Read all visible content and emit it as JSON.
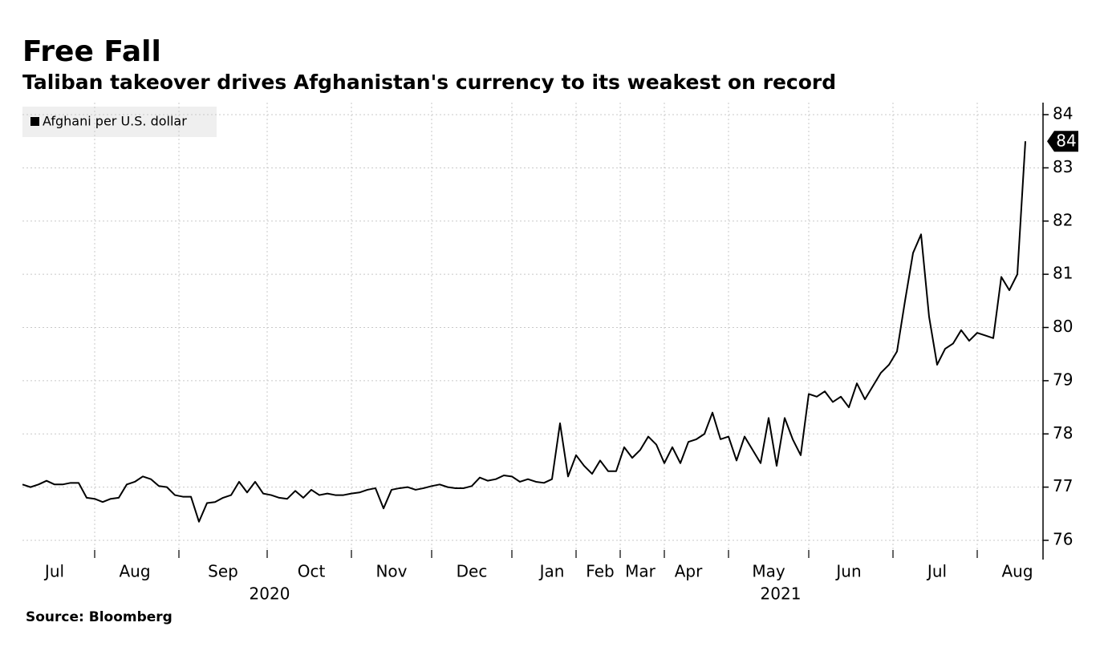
{
  "chart_data": {
    "type": "line",
    "title": "Free Fall",
    "subtitle": "Taliban takeover drives Afghanistan's currency to its weakest on record",
    "source": "Source: Bloomberg",
    "categories": [
      null,
      null,
      null,
      null,
      "Jul",
      null,
      null,
      null,
      null,
      null,
      null,
      null,
      null,
      null,
      "Aug",
      null,
      null,
      null,
      null,
      null,
      null,
      null,
      null,
      null,
      null,
      "Sep",
      null,
      null,
      null,
      null,
      null,
      null,
      null,
      null,
      null,
      null,
      "Oct",
      null,
      null,
      null,
      null,
      null,
      null,
      null,
      null,
      null,
      "Nov",
      null,
      null,
      null,
      null,
      null,
      null,
      null,
      null,
      null,
      "Dec",
      null,
      null,
      null,
      null,
      null,
      null,
      null,
      null,
      null,
      "Jan",
      null,
      null,
      null,
      null,
      null,
      "Feb",
      null,
      null,
      null,
      null,
      "Mar",
      null,
      null,
      null,
      null,
      null,
      "Apr",
      null,
      null,
      null,
      null,
      null,
      null,
      null,
      null,
      null,
      "May",
      null,
      null,
      null,
      null,
      null,
      null,
      null,
      null,
      null,
      "Jun",
      null,
      null,
      null,
      null,
      null,
      null,
      null,
      null,
      null,
      null,
      "Jul",
      null,
      null,
      null,
      null,
      null,
      null,
      null,
      null,
      null,
      "Aug",
      null
    ],
    "x_groups": [
      "2020",
      "2021"
    ],
    "series": [
      {
        "name": "Afghani per U.S. dollar",
        "color": "#000000",
        "values": [
          77.05,
          77.0,
          77.05,
          77.12,
          77.05,
          77.05,
          77.08,
          77.08,
          76.8,
          76.78,
          76.72,
          76.78,
          76.8,
          77.05,
          77.1,
          77.2,
          77.15,
          77.02,
          77.0,
          76.85,
          76.82,
          76.82,
          76.35,
          76.7,
          76.72,
          76.8,
          76.85,
          77.1,
          76.9,
          77.1,
          76.88,
          76.85,
          76.8,
          76.78,
          76.93,
          76.8,
          76.95,
          76.85,
          76.88,
          76.85,
          76.85,
          76.88,
          76.9,
          76.95,
          76.98,
          76.6,
          76.95,
          76.98,
          77.0,
          76.95,
          76.98,
          77.02,
          77.05,
          77.0,
          76.98,
          76.98,
          77.02,
          77.18,
          77.12,
          77.15,
          77.22,
          77.2,
          77.1,
          77.15,
          77.1,
          77.08,
          77.15,
          78.2,
          77.2,
          77.6,
          77.4,
          77.25,
          77.5,
          77.3,
          77.3,
          77.75,
          77.55,
          77.7,
          77.95,
          77.8,
          77.45,
          77.75,
          77.45,
          77.85,
          77.9,
          78.0,
          78.4,
          77.9,
          77.95,
          77.5,
          77.95,
          77.7,
          77.45,
          78.3,
          77.4,
          78.3,
          77.9,
          77.6,
          78.75,
          78.7,
          78.8,
          78.6,
          78.7,
          78.5,
          78.95,
          78.65,
          78.9,
          79.15,
          79.3,
          79.55,
          80.5,
          81.4,
          81.75,
          80.2,
          79.3,
          79.6,
          79.7,
          79.95,
          79.75,
          79.9,
          79.85,
          79.8,
          80.95,
          80.7,
          81.0,
          83.5
        ]
      }
    ],
    "end_label": "84",
    "ylim": [
      76,
      84
    ],
    "yticks": [
      76,
      77,
      78,
      79,
      80,
      81,
      82,
      83,
      84
    ],
    "grid": true,
    "legend": "top-left"
  }
}
